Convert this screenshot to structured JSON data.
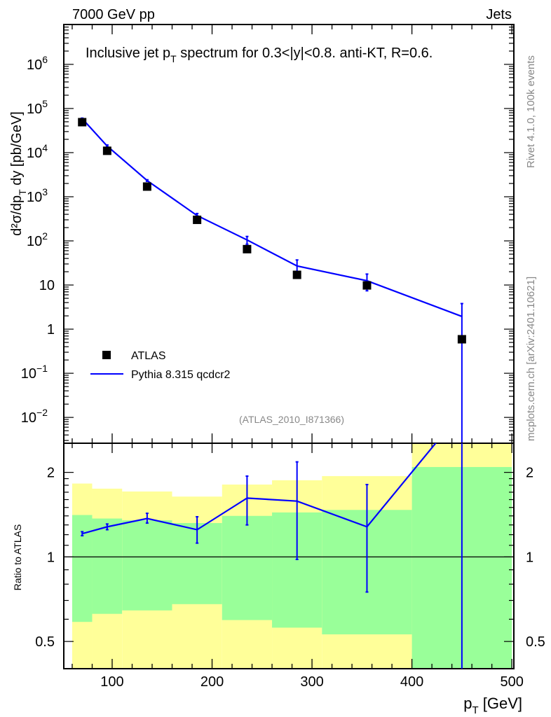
{
  "header": {
    "left": "7000 GeV pp",
    "right": "Jets"
  },
  "side_labels": {
    "rivet": "Rivet 4.1.0,  100k events",
    "mcplots": "mcplots.cern.ch [arXiv:2401.10621]"
  },
  "colors": {
    "mc": "#0000ff",
    "data": "#000000",
    "band_inner": "#99ff99",
    "band_outer": "#ffff99",
    "gray": "#888888"
  },
  "chart_data": [
    {
      "type": "scatter",
      "title": "Inclusive jet p",
      "title_sub": "T",
      "title_rest": " spectrum for 0.3<|y|<0.8.  anti-KT, R=0.6.",
      "ylabel": "d²σ/dp",
      "ylabel_sub": "T",
      "ylabel_rest": " dy [pb/GeV]",
      "yscale": "log",
      "ylim": [
        0.0026,
        8000000
      ],
      "xlim": [
        51.6,
        502
      ],
      "yticks": [
        {
          "v": 0.01,
          "base": "10",
          "exp": "−2"
        },
        {
          "v": 0.1,
          "base": "10",
          "exp": "−1"
        },
        {
          "v": 1,
          "base": "1",
          "exp": ""
        },
        {
          "v": 10,
          "base": "10",
          "exp": ""
        },
        {
          "v": 100,
          "base": "10",
          "exp": "2"
        },
        {
          "v": 1000,
          "base": "10",
          "exp": "3"
        },
        {
          "v": 10000,
          "base": "10",
          "exp": "4"
        },
        {
          "v": 100000,
          "base": "10",
          "exp": "5"
        },
        {
          "v": 1000000,
          "base": "10",
          "exp": "6"
        }
      ],
      "legend": {
        "placement": "lower-left",
        "entries": [
          "ATLAS",
          "Pythia 8.315 qcdcr2"
        ]
      },
      "watermark": "(ATLAS_2010_I871366)",
      "series": [
        {
          "name": "ATLAS",
          "marker": "square",
          "x": [
            70,
            95,
            135,
            185,
            235,
            285,
            355,
            450
          ],
          "y": [
            49000,
            11000,
            1700,
            300,
            65,
            17,
            9.8,
            0.59
          ]
        },
        {
          "name": "Pythia 8.315 qcdcr2",
          "marker": "line",
          "x": [
            70,
            95,
            135,
            185,
            235,
            285,
            355,
            450
          ],
          "y": [
            59000,
            14100,
            2330,
            375,
            105,
            27,
            12.5,
            1.94
          ],
          "yerr_low": [
            57000,
            13500,
            2240,
            336,
            84,
            16.7,
            7.4,
            0.001
          ],
          "yerr_high": [
            60500,
            14900,
            2430,
            417,
            126,
            37,
            17.7,
            3.8
          ]
        }
      ]
    },
    {
      "type": "line",
      "ylabel": "Ratio to ATLAS",
      "xlabel": "p",
      "xlabel_sub": "T",
      "xlabel_rest": " [GeV]",
      "yscale": "log",
      "ylim": [
        0.4,
        2.54
      ],
      "xlim": [
        51.6,
        502
      ],
      "yticks": [
        "0.5",
        "1",
        "2"
      ],
      "xticks": [
        "100",
        "200",
        "300",
        "400",
        "500"
      ],
      "reference": 1,
      "bands": {
        "edges": [
          60,
          80,
          110,
          160,
          210,
          260,
          310,
          400,
          500
        ],
        "inner_low": [
          0.587,
          0.627,
          0.645,
          0.679,
          0.596,
          0.56,
          0.53,
          0.3
        ],
        "inner_high": [
          1.41,
          1.37,
          1.35,
          1.32,
          1.4,
          1.44,
          1.47,
          2.09
        ],
        "outer_low": [
          0.3,
          0.3,
          0.3,
          0.3,
          0.3,
          0.3,
          0.3,
          0.3
        ],
        "outer_high": [
          1.825,
          1.75,
          1.71,
          1.64,
          1.81,
          1.875,
          1.94,
          3.0
        ]
      },
      "series": [
        {
          "name": "Pythia 8.315 qcdcr2",
          "x": [
            70,
            95,
            135,
            185,
            235,
            285,
            355,
            450
          ],
          "y": [
            1.21,
            1.28,
            1.37,
            1.25,
            1.62,
            1.58,
            1.28,
            3.3
          ],
          "yerr_low": [
            1.19,
            1.25,
            1.32,
            1.12,
            1.3,
            0.98,
            0.75,
            0.001
          ],
          "yerr_high": [
            1.23,
            1.31,
            1.43,
            1.39,
            1.94,
            2.18,
            1.81,
            6.4
          ]
        }
      ]
    }
  ]
}
